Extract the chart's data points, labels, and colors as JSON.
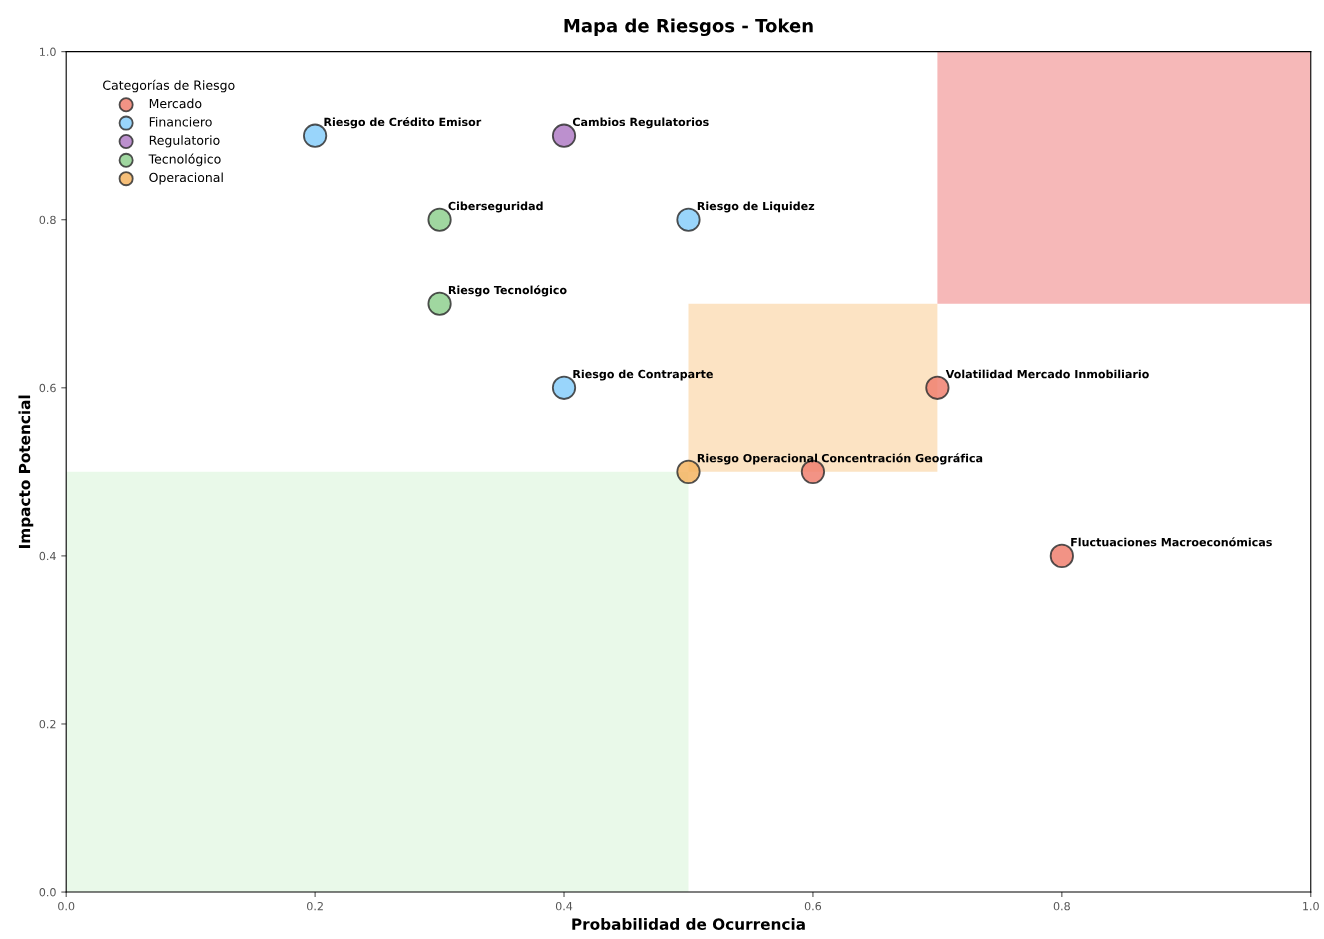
{
  "chart_data": {
    "type": "scatter",
    "title": "Mapa de Riesgos - Token",
    "xlabel": "Probabilidad de Ocurrencia",
    "ylabel": "Impacto Potencial",
    "legend_title": "Categorías de Riesgo",
    "legend": "top left",
    "marker": "circle",
    "grid": false,
    "xlim": [
      0,
      1
    ],
    "ylim": [
      0,
      1
    ],
    "xticks": [
      {
        "value": 0,
        "label": "0.0"
      },
      0.2,
      0.4,
      0.6,
      0.8,
      {
        "value": 1,
        "label": "1.0"
      }
    ],
    "yticks": [
      {
        "value": 0,
        "label": "0.0"
      },
      0.2,
      0.4,
      0.6,
      0.8,
      {
        "value": 1,
        "label": "1.0"
      }
    ],
    "series": [
      {
        "name": "Mercado",
        "color": "#f08070",
        "x": [
          0.7,
          0.6,
          0.8
        ],
        "values": [
          0.6,
          0.5,
          0.4
        ]
      },
      {
        "name": "Financiero",
        "color": "#87cefa",
        "x": [
          0.2,
          0.5,
          0.4
        ],
        "values": [
          0.9,
          0.8,
          0.6
        ]
      },
      {
        "name": "Regulatorio",
        "color": "#b07cc6",
        "x": [
          0.4
        ],
        "values": [
          0.9
        ]
      },
      {
        "name": "Tecnológico",
        "color": "#8fd08f",
        "x": [
          0.3,
          0.3
        ],
        "values": [
          0.8,
          0.7
        ]
      },
      {
        "name": "Operacional",
        "color": "#f5b461",
        "x": [
          0.5
        ],
        "values": [
          0.5
        ]
      },
      {
        "type": "line",
        "color": "#f4a6a6",
        "x": [
          0.7,
          1.0
        ],
        "values": [
          null,
          null
        ],
        "lower": [
          0.7,
          0.7
        ],
        "upper": [
          1.0,
          1.0
        ]
      },
      {
        "type": "line",
        "color": "#fbdcb4",
        "x": [
          0.5,
          0.7
        ],
        "values": [
          null,
          null
        ],
        "lower": [
          0.5,
          0.5
        ],
        "upper": [
          0.7,
          0.7
        ]
      },
      {
        "type": "line",
        "color": "#e3f8e3",
        "x": [
          0.0,
          0.5
        ],
        "values": [
          null,
          null
        ],
        "lower": [
          0.0,
          0.0
        ],
        "upper": [
          0.5,
          0.5
        ]
      }
    ],
    "annotations": [
      {
        "text": "Volatilidad Mercado Inmobiliario",
        "x": 0.7,
        "y": 0.6
      },
      {
        "text": "Concentración Geográfica",
        "x": 0.6,
        "y": 0.5
      },
      {
        "text": "Fluctuaciones Macroeconómicas",
        "x": 0.8,
        "y": 0.4
      },
      {
        "text": "Riesgo de Crédito Emisor",
        "x": 0.2,
        "y": 0.9
      },
      {
        "text": "Riesgo de Liquidez",
        "x": 0.5,
        "y": 0.8
      },
      {
        "text": "Riesgo de Contraparte",
        "x": 0.4,
        "y": 0.6
      },
      {
        "text": "Cambios Regulatorios",
        "x": 0.4,
        "y": 0.9
      },
      {
        "text": "Ciberseguridad",
        "x": 0.3,
        "y": 0.8
      },
      {
        "text": "Riesgo Tecnológico",
        "x": 0.3,
        "y": 0.7
      },
      {
        "text": "Riesgo Operacional",
        "x": 0.5,
        "y": 0.5
      }
    ]
  }
}
